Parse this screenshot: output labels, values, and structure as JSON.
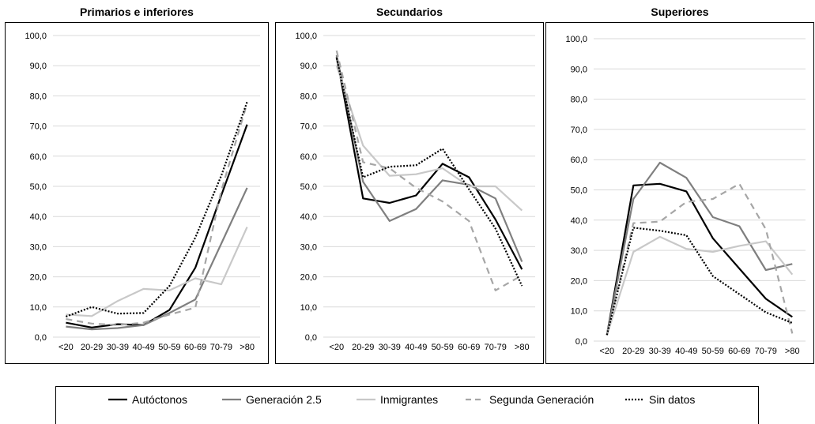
{
  "chart_data": [
    {
      "type": "line",
      "title": "Primarios e inferiores",
      "categories": [
        "<20",
        "20-29",
        "30-39",
        "40-49",
        "50-59",
        "60-69",
        "70-79",
        ">80"
      ],
      "ylim": [
        0,
        100
      ],
      "yticks": [
        "0,0",
        "10,0",
        "20,0",
        "30,0",
        "40,0",
        "50,0",
        "60,0",
        "70,0",
        "80,0",
        "90,0",
        "100,0"
      ],
      "series": [
        {
          "name": "Autóctonos",
          "values": [
            4.8,
            3.2,
            4.3,
            4.0,
            9.0,
            23.0,
            47.0,
            70.5
          ]
        },
        {
          "name": "Generación 2.5",
          "values": [
            3.5,
            2.6,
            3.0,
            4.0,
            8.0,
            12.5,
            31.0,
            49.5
          ]
        },
        {
          "name": "Inmigrantes",
          "values": [
            7.5,
            7.0,
            12.0,
            16.0,
            15.5,
            19.5,
            17.5,
            36.5
          ]
        },
        {
          "name": "Segunda Generación",
          "values": [
            6.0,
            4.5,
            4.0,
            4.8,
            7.5,
            9.8,
            48.5,
            77.5
          ]
        },
        {
          "name": "Sin datos",
          "values": [
            6.8,
            10.0,
            7.8,
            8.0,
            17.0,
            33.0,
            53.5,
            78.0
          ]
        }
      ]
    },
    {
      "type": "line",
      "title": "Secundarios",
      "categories": [
        "<20",
        "20-29",
        "30-39",
        "40-49",
        "50-59",
        "60-69",
        "70-79",
        ">80"
      ],
      "ylim": [
        0,
        100
      ],
      "yticks": [
        "0,0",
        "10,0",
        "20,0",
        "30,0",
        "40,0",
        "50,0",
        "60,0",
        "70,0",
        "80,0",
        "90,0",
        "100,0"
      ],
      "series": [
        {
          "name": "Autóctonos",
          "values": [
            93.0,
            46.0,
            44.5,
            47.0,
            57.5,
            53.0,
            39.0,
            22.5
          ]
        },
        {
          "name": "Generación 2.5",
          "values": [
            93.5,
            51.5,
            38.5,
            42.5,
            52.0,
            50.5,
            46.0,
            25.0
          ]
        },
        {
          "name": "Inmigrantes",
          "values": [
            90.0,
            63.5,
            53.5,
            54.0,
            56.0,
            50.0,
            50.0,
            42.0
          ]
        },
        {
          "name": "Segunda Generación",
          "values": [
            95.0,
            58.0,
            56.0,
            49.5,
            45.0,
            38.5,
            15.5,
            20.5
          ]
        },
        {
          "name": "Sin datos",
          "values": [
            92.5,
            53.0,
            56.5,
            57.0,
            62.5,
            49.0,
            36.0,
            17.0
          ]
        }
      ]
    },
    {
      "type": "line",
      "title": "Superiores",
      "categories": [
        "<20",
        "20-29",
        "30-39",
        "40-49",
        "50-59",
        "60-69",
        "70-79",
        ">80"
      ],
      "ylim": [
        0,
        100
      ],
      "yticks": [
        "0,0",
        "10,0",
        "20,0",
        "30,0",
        "40,0",
        "50,0",
        "60,0",
        "70,0",
        "80,0",
        "90,0",
        "100,0"
      ],
      "series": [
        {
          "name": "Autóctonos",
          "values": [
            2.0,
            51.5,
            52.0,
            49.5,
            34.0,
            24.0,
            14.0,
            8.0
          ]
        },
        {
          "name": "Generación 2.5",
          "values": [
            2.0,
            47.0,
            59.0,
            54.0,
            41.0,
            38.0,
            23.5,
            25.5
          ]
        },
        {
          "name": "Inmigrantes",
          "values": [
            2.0,
            29.5,
            34.5,
            30.5,
            29.5,
            31.5,
            33.0,
            22.0
          ]
        },
        {
          "name": "Segunda Generación",
          "values": [
            2.0,
            39.0,
            39.5,
            46.0,
            47.0,
            52.0,
            37.0,
            2.5
          ]
        },
        {
          "name": "Sin datos",
          "values": [
            2.0,
            37.5,
            36.5,
            35.0,
            21.5,
            15.5,
            9.5,
            6.0
          ]
        }
      ]
    }
  ],
  "legend": {
    "items": [
      {
        "label": "Autóctonos",
        "color": "#000000",
        "dash": "solid"
      },
      {
        "label": "Generación 2.5",
        "color": "#7f7f7f",
        "dash": "solid"
      },
      {
        "label": "Inmigrantes",
        "color": "#c8c8c8",
        "dash": "solid"
      },
      {
        "label": "Segunda Generación",
        "color": "#a6a6a6",
        "dash": "dashed"
      },
      {
        "label": "Sin datos",
        "color": "#000000",
        "dash": "dotted"
      }
    ]
  }
}
